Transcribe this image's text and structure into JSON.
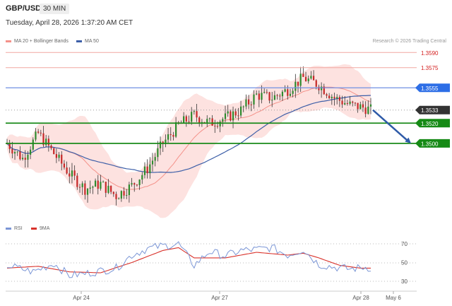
{
  "header": {
    "symbol": "GBP/USD",
    "timeframe": "30 MIN",
    "datetime": "Tuesday, April 28, 2026 1:37:20 AM CET"
  },
  "legend": {
    "items": [
      {
        "label": "MA 20 + Bollinger Bands",
        "color": "#f4928a"
      },
      {
        "label": "MA 50",
        "color": "#3d5fa8"
      }
    ]
  },
  "rsi_legend": {
    "items": [
      {
        "label": "RSI",
        "color": "#7b96d6"
      },
      {
        "label": "9MA",
        "color": "#d9322b"
      }
    ]
  },
  "credit": "Research © 2026 Trading Central",
  "chart_data": {
    "type": "candlestick",
    "price_axis": {
      "ylim": [
        1.3425,
        1.36
      ]
    },
    "levels": [
      {
        "label": "1.3590",
        "value": 1.359,
        "kind": "resistance"
      },
      {
        "label": "1.3575",
        "value": 1.3575,
        "kind": "resistance"
      },
      {
        "label": "1.3555",
        "value": 1.3555,
        "kind": "pivot"
      },
      {
        "label": "1.3533",
        "value": 1.3533,
        "kind": "last"
      },
      {
        "label": "1.3520",
        "value": 1.352,
        "kind": "support"
      },
      {
        "label": "1.3500",
        "value": 1.35,
        "kind": "support"
      }
    ],
    "forecast_arrow": {
      "from": 1.3533,
      "to": 1.35,
      "direction": "down"
    },
    "x_ticks": [
      "Apr 24",
      "Apr 27",
      "Apr 28",
      "May 6"
    ],
    "candle_anchors": [
      [
        0,
        1.35
      ],
      [
        6,
        1.3485
      ],
      [
        12,
        1.351
      ],
      [
        18,
        1.349
      ],
      [
        24,
        1.347
      ],
      [
        30,
        1.3455
      ],
      [
        36,
        1.346
      ],
      [
        42,
        1.3448
      ],
      [
        48,
        1.3458
      ],
      [
        54,
        1.3475
      ],
      [
        60,
        1.35
      ],
      [
        66,
        1.3518
      ],
      [
        72,
        1.3528
      ],
      [
        78,
        1.352
      ],
      [
        84,
        1.3525
      ],
      [
        90,
        1.3533
      ],
      [
        96,
        1.3548
      ],
      [
        102,
        1.3545
      ],
      [
        108,
        1.3553
      ],
      [
        114,
        1.3565
      ],
      [
        120,
        1.3558
      ],
      [
        126,
        1.3545
      ],
      [
        132,
        1.3538
      ],
      [
        138,
        1.3535
      ],
      [
        140,
        1.3533
      ]
    ],
    "rsi": {
      "ylim": [
        20,
        80
      ],
      "ticks": [
        30,
        50,
        70
      ],
      "rsi_anchors": [
        [
          0,
          47
        ],
        [
          10,
          40
        ],
        [
          18,
          49
        ],
        [
          24,
          36
        ],
        [
          30,
          38
        ],
        [
          36,
          41
        ],
        [
          42,
          44
        ],
        [
          48,
          58
        ],
        [
          54,
          65
        ],
        [
          60,
          68
        ],
        [
          66,
          70
        ],
        [
          72,
          47
        ],
        [
          78,
          62
        ],
        [
          84,
          57
        ],
        [
          90,
          63
        ],
        [
          96,
          64
        ],
        [
          102,
          66
        ],
        [
          108,
          58
        ],
        [
          114,
          64
        ],
        [
          120,
          48
        ],
        [
          126,
          45
        ],
        [
          132,
          43
        ],
        [
          138,
          45
        ],
        [
          140,
          44
        ]
      ],
      "ma_anchors": [
        [
          0,
          44
        ],
        [
          12,
          46
        ],
        [
          24,
          40
        ],
        [
          36,
          39
        ],
        [
          48,
          50
        ],
        [
          60,
          63
        ],
        [
          66,
          66
        ],
        [
          72,
          55
        ],
        [
          84,
          55
        ],
        [
          96,
          61
        ],
        [
          108,
          58
        ],
        [
          114,
          60
        ],
        [
          120,
          55
        ],
        [
          128,
          47
        ],
        [
          136,
          44
        ],
        [
          140,
          44
        ]
      ]
    }
  }
}
